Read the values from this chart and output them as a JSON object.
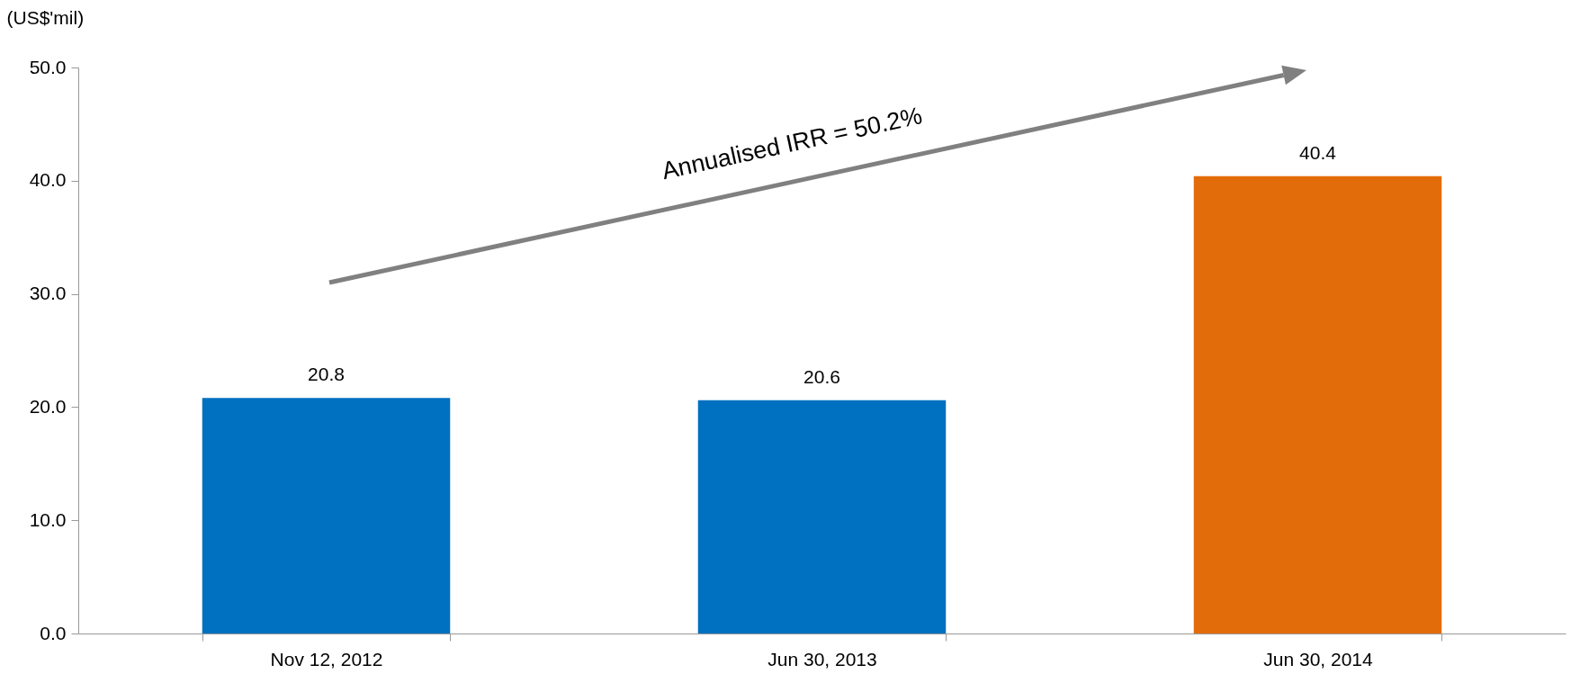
{
  "chart_data": {
    "type": "bar",
    "ylabel": "(US$'mil)",
    "categories": [
      "Nov 12, 2012",
      "Jun 30, 2013",
      "Jun 30, 2014"
    ],
    "values": [
      20.8,
      20.6,
      40.4
    ],
    "colors": [
      "#0070c0",
      "#0070c0",
      "#e36c0a"
    ],
    "ylim": [
      0,
      50
    ],
    "yticks": [
      {
        "value": 0,
        "label": "0.0"
      },
      {
        "value": 10,
        "label": "10.0"
      },
      {
        "value": 20,
        "label": "20.0"
      },
      {
        "value": 30,
        "label": "30.0"
      },
      {
        "value": 40,
        "label": "40.0"
      },
      {
        "value": 50,
        "label": "50.0"
      }
    ],
    "data_labels": true,
    "grid": false,
    "legend": false,
    "annotations": [
      "Annualised IRR = 50.2%"
    ]
  }
}
